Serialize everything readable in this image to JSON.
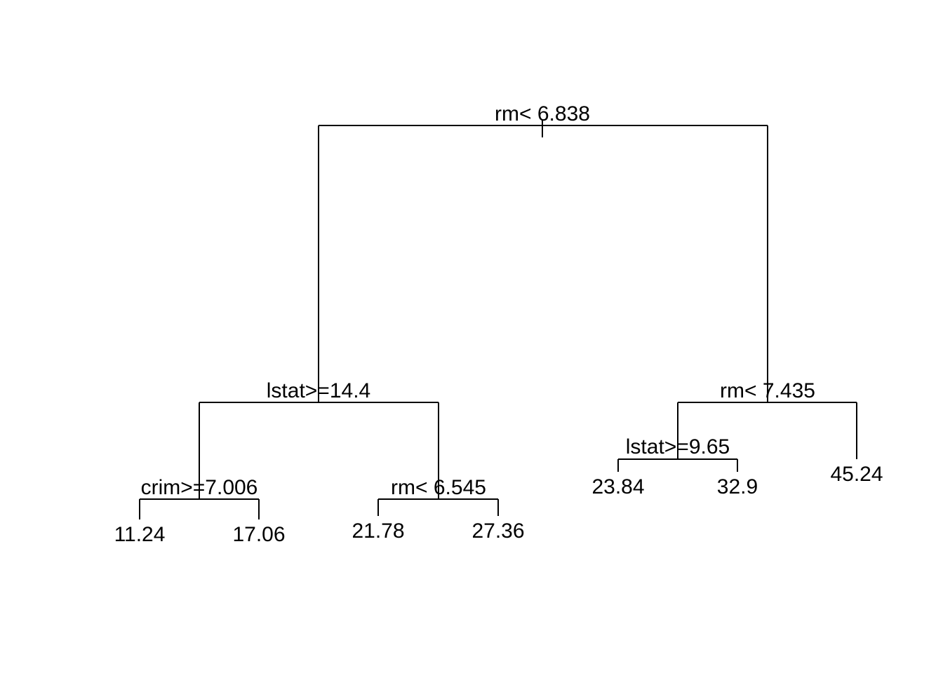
{
  "tree": {
    "root": {
      "split": "rm< 6.838",
      "left": {
        "split": "lstat>=14.4",
        "left": {
          "split": "crim>=7.006",
          "left": {
            "value": "11.24"
          },
          "right": {
            "value": "17.06"
          }
        },
        "right": {
          "split": "rm< 6.545",
          "left": {
            "value": "21.78"
          },
          "right": {
            "value": "27.36"
          }
        }
      },
      "right": {
        "split": "rm< 7.435",
        "left": {
          "split": "lstat>=9.65",
          "left": {
            "value": "23.84"
          },
          "right": {
            "value": "32.9"
          }
        },
        "right": {
          "value": "45.24"
        }
      }
    }
  }
}
